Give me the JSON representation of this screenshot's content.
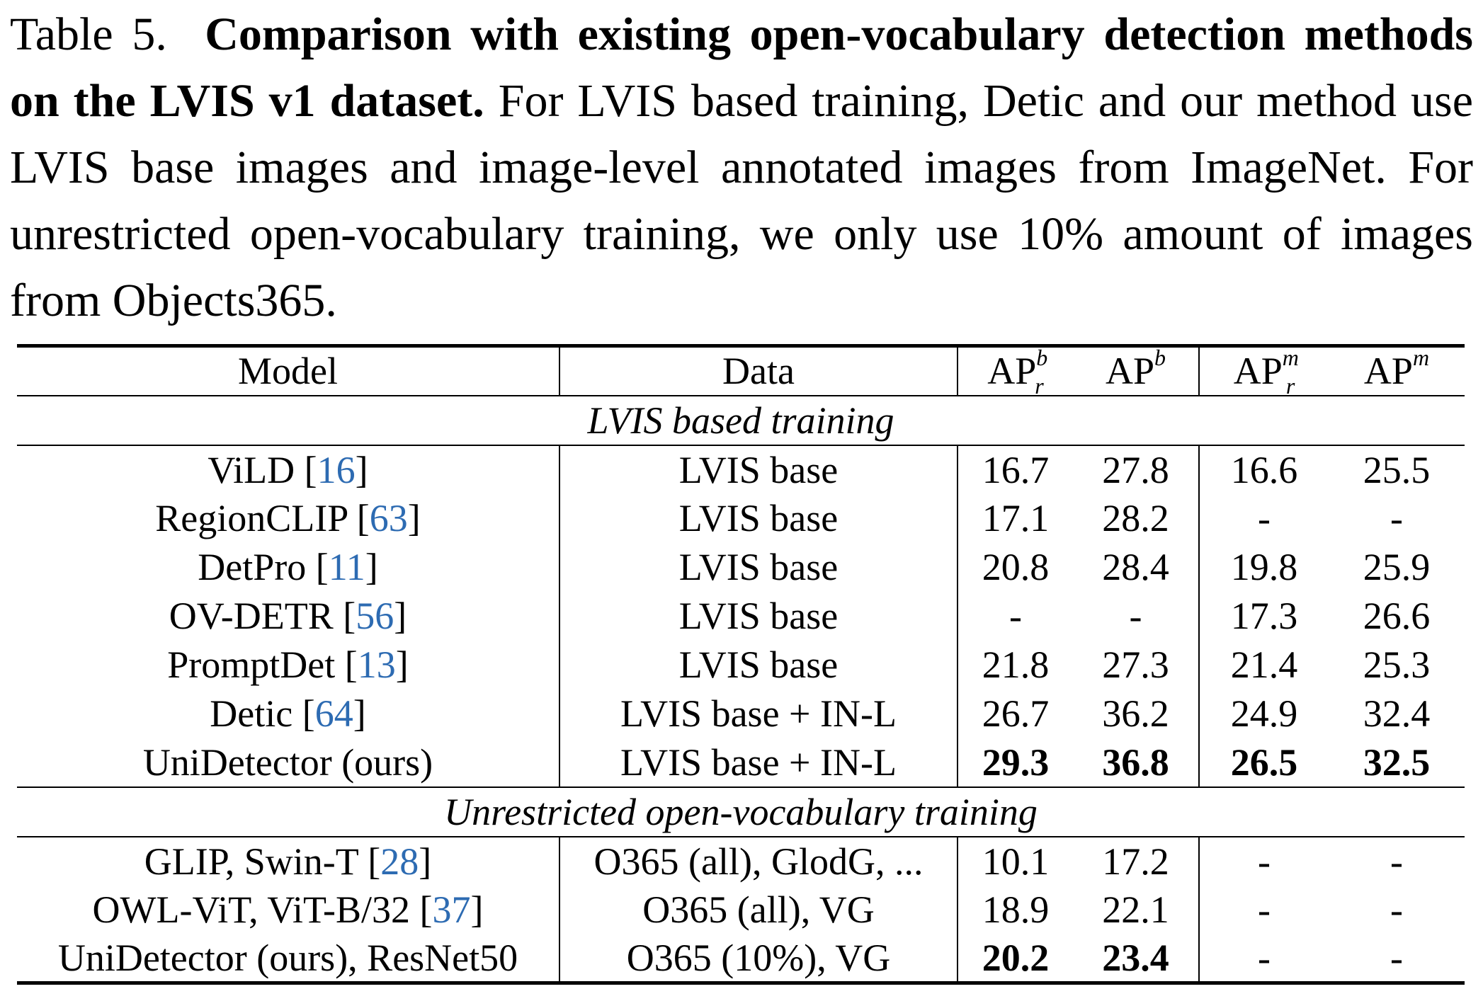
{
  "caption": {
    "label": "Table 5.",
    "title": "Comparison with existing open-vocabulary detection methods on the LVIS v1 dataset.",
    "text": "For LVIS based training, Detic and our method use LVIS base images and image-level annotated images from ImageNet. For unrestricted open-vocabulary training, we only use 10% amount of images from Objects365."
  },
  "table": {
    "headers": {
      "model": "Model",
      "data": "Data",
      "apr_b": {
        "base": "AP",
        "sup": "b",
        "sub": "r"
      },
      "ap_b": {
        "base": "AP",
        "sup": "b"
      },
      "apr_m": {
        "base": "AP",
        "sup": "m",
        "sub": "r"
      },
      "ap_m": {
        "base": "AP",
        "sup": "m"
      }
    },
    "sections": [
      {
        "title": "LVIS based training",
        "rows": [
          {
            "model": "ViLD",
            "cite": "16",
            "data": "LVIS base",
            "apr_b": "16.7",
            "ap_b": "27.8",
            "apr_m": "16.6",
            "ap_m": "25.5",
            "bold": false
          },
          {
            "model": "RegionCLIP",
            "cite": "63",
            "data": "LVIS base",
            "apr_b": "17.1",
            "ap_b": "28.2",
            "apr_m": "-",
            "ap_m": "-",
            "bold": false
          },
          {
            "model": "DetPro",
            "cite": "11",
            "data": "LVIS base",
            "apr_b": "20.8",
            "ap_b": "28.4",
            "apr_m": "19.8",
            "ap_m": "25.9",
            "bold": false
          },
          {
            "model": "OV-DETR",
            "cite": "56",
            "data": "LVIS base",
            "apr_b": "-",
            "ap_b": "-",
            "apr_m": "17.3",
            "ap_m": "26.6",
            "bold": false
          },
          {
            "model": "PromptDet",
            "cite": "13",
            "data": "LVIS base",
            "apr_b": "21.8",
            "ap_b": "27.3",
            "apr_m": "21.4",
            "ap_m": "25.3",
            "bold": false
          },
          {
            "model": "Detic",
            "cite": "64",
            "data": "LVIS base + IN-L",
            "apr_b": "26.7",
            "ap_b": "36.2",
            "apr_m": "24.9",
            "ap_m": "32.4",
            "bold": false
          },
          {
            "model": "UniDetector (ours)",
            "cite": "",
            "data": "LVIS base + IN-L",
            "apr_b": "29.3",
            "ap_b": "36.8",
            "apr_m": "26.5",
            "ap_m": "32.5",
            "bold": true
          }
        ]
      },
      {
        "title": "Unrestricted open-vocabulary training",
        "rows": [
          {
            "model": "GLIP, Swin-T",
            "cite": "28",
            "data": "O365 (all), GlodG, ...",
            "apr_b": "10.1",
            "ap_b": "17.2",
            "apr_m": "-",
            "ap_m": "-",
            "bold": false
          },
          {
            "model": "OWL-ViT, ViT-B/32",
            "cite": "37",
            "data": "O365 (all), VG",
            "apr_b": "18.9",
            "ap_b": "22.1",
            "apr_m": "-",
            "ap_m": "-",
            "bold": false
          },
          {
            "model": "UniDetector (ours), ResNet50",
            "cite": "",
            "data": "O365 (10%), VG",
            "apr_b": "20.2",
            "ap_b": "23.4",
            "apr_m": "-",
            "ap_m": "-",
            "bold": true
          }
        ]
      }
    ]
  }
}
